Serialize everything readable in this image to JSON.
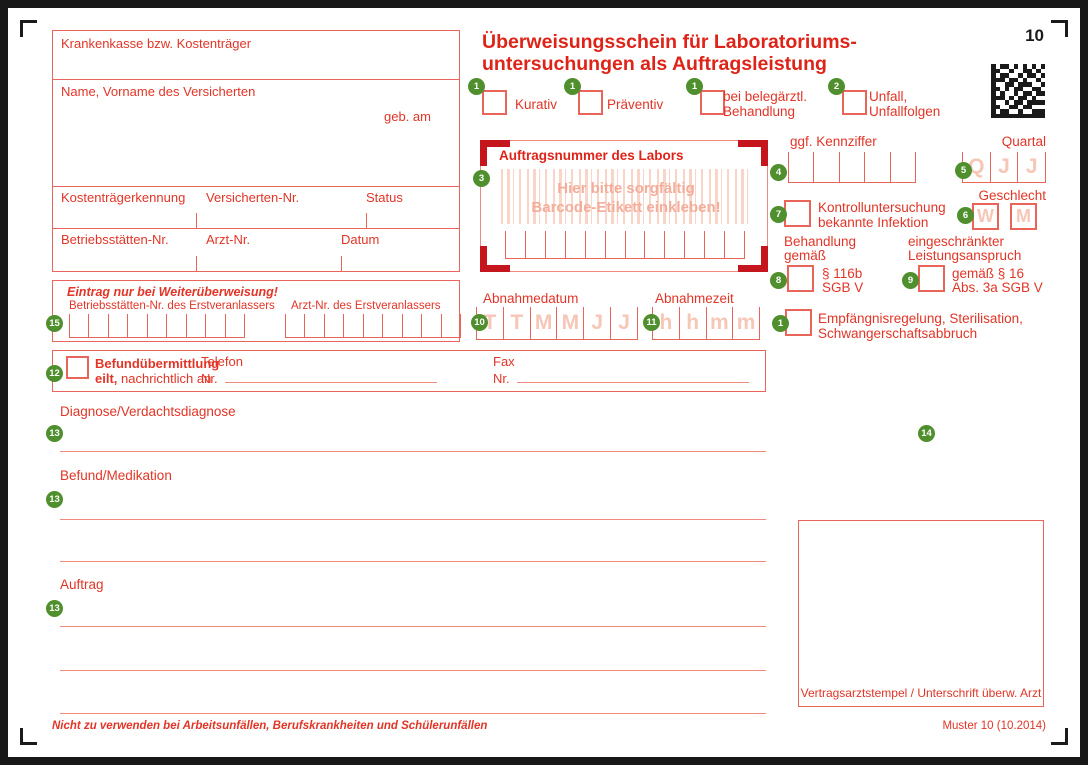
{
  "form_number": "10",
  "title": {
    "line1": "Überweisungsschein für Laboratoriums-",
    "line2": "untersuchungen als Auftragsleistung"
  },
  "patient_box": {
    "insurer_label": "Krankenkasse bzw. Kostenträger",
    "name_label": "Name, Vorname des Versicherten",
    "dob_label": "geb. am",
    "payer_id_label": "Kostenträgerkennung",
    "insured_no_label": "Versicherten-Nr.",
    "status_label": "Status",
    "practice_no_label": "Betriebsstätten-Nr.",
    "doctor_no_label": "Arzt-Nr.",
    "date_label": "Datum"
  },
  "top_checkboxes": {
    "kurativ": {
      "badge": "1",
      "label": "Kurativ"
    },
    "praeventiv": {
      "badge": "1",
      "label": "Präventiv"
    },
    "belegaerztlich": {
      "badge": "1",
      "line1": "bei belegärztl.",
      "line2": "Behandlung"
    },
    "unfall": {
      "badge": "2",
      "line1": "Unfall,",
      "line2": "Unfallfolgen"
    }
  },
  "lab_order_box": {
    "badge": "3",
    "title": "Auftragsnummer des Labors",
    "hint_line1": "Hier bitte sorgfältig",
    "hint_line2": "Barcode-Etikett einkleben!",
    "cells": 12
  },
  "kennziffer": {
    "badge": "4",
    "label": "ggf. Kennziffer",
    "cells": 5
  },
  "quartal": {
    "badge": "5",
    "label": "Quartal",
    "cells": [
      "Q",
      "J",
      "J"
    ]
  },
  "geschlecht": {
    "badge": "6",
    "label": "Geschlecht",
    "cells": [
      "W",
      "M"
    ]
  },
  "kontrolluntersuchung": {
    "badge": "7",
    "line1": "Kontrolluntersuchung",
    "line2": "bekannte Infektion"
  },
  "behandlung_116b": {
    "badge": "8",
    "header1": "Behandlung",
    "header2": "gemäß",
    "line1": "§ 116b",
    "line2": "SGB V"
  },
  "leistungsanspruch": {
    "badge": "9",
    "header1": "eingeschränkter",
    "header2": "Leistungsanspruch",
    "line1": "gemäß § 16",
    "line2": "Abs. 3a SGB V"
  },
  "abnahmedatum": {
    "badge": "10",
    "label": "Abnahmedatum",
    "cells": [
      "T",
      "T",
      "M",
      "M",
      "J",
      "J"
    ]
  },
  "abnahmezeit": {
    "badge": "11",
    "label": "Abnahmezeit",
    "cells": [
      "h",
      "h",
      "m",
      "m"
    ]
  },
  "empfaengnisregelung": {
    "badge": "1",
    "line1": "Empfängnisregelung, Sterilisation,",
    "line2": "Schwangerschaftsabbruch"
  },
  "weiterueberweisung": {
    "badge": "15",
    "title": "Eintrag nur bei Weiterüberweisung!",
    "left_label": "Betriebsstätten-Nr. des Erstveranlassers",
    "right_label": "Arzt-Nr. des Erstveranlassers",
    "left_cells": 9,
    "right_cells": 9
  },
  "befunduebermittlung": {
    "badge": "12",
    "bold_line1": "Befundübermittlung",
    "bold_word2": "eilt,",
    "rest_line2": " nachrichtlich an",
    "tel_label": "Telefon",
    "tel_nr_label": "Nr.",
    "fax_label": "Fax",
    "fax_nr_label": "Nr."
  },
  "sections": {
    "diagnose": {
      "badge": "13",
      "label": "Diagnose/Verdachtsdiagnose"
    },
    "befund": {
      "badge": "13",
      "label": "Befund/Medikation"
    },
    "auftrag": {
      "badge": "13",
      "label": "Auftrag"
    }
  },
  "badge14": "14",
  "stamp_box": {
    "label": "Vertragsarztstempel / Unterschrift überw. Arzt"
  },
  "footer": {
    "left": "Nicht zu verwenden bei Arbeitsunfällen, Berufskrankheiten und Schülerunfällen",
    "right": "Muster 10 (10.2014)"
  },
  "colors": {
    "form_red": "#e23527",
    "bracket_red": "#c5161d",
    "badge_green": "#4f8f2d",
    "ghost_pink": "#f6c6b6"
  },
  "barcode_matrix": [
    "101101010101",
    "110010011010",
    "101100101101",
    "111011010010",
    "100110111001",
    "110101100110",
    "101001011011",
    "111010110100",
    "100101101111",
    "110011011000",
    "101100100111",
    "111111111111"
  ]
}
